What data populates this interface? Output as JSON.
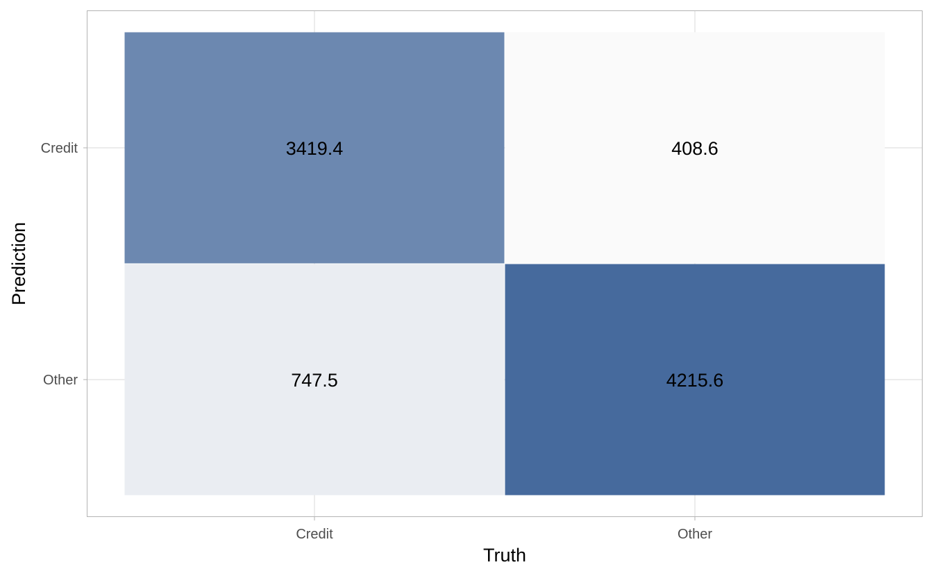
{
  "chart_data": {
    "type": "heatmap",
    "xlabel": "Truth",
    "ylabel": "Prediction",
    "x_categories": [
      "Credit",
      "Other"
    ],
    "y_categories": [
      "Credit",
      "Other"
    ],
    "cells": [
      {
        "truth": "Credit",
        "prediction": "Credit",
        "value": 3419.4,
        "label": "3419.4"
      },
      {
        "truth": "Other",
        "prediction": "Credit",
        "value": 408.6,
        "label": "408.6"
      },
      {
        "truth": "Credit",
        "prediction": "Other",
        "value": 747.5,
        "label": "747.5"
      },
      {
        "truth": "Other",
        "prediction": "Other",
        "value": 4215.6,
        "label": "4215.6"
      }
    ],
    "grid": true,
    "legend": "none",
    "colors": {
      "low": "#fafafa",
      "high": "#466a9d",
      "panel_border": "#b3b3b3",
      "gridline": "#d9d9d9"
    }
  }
}
